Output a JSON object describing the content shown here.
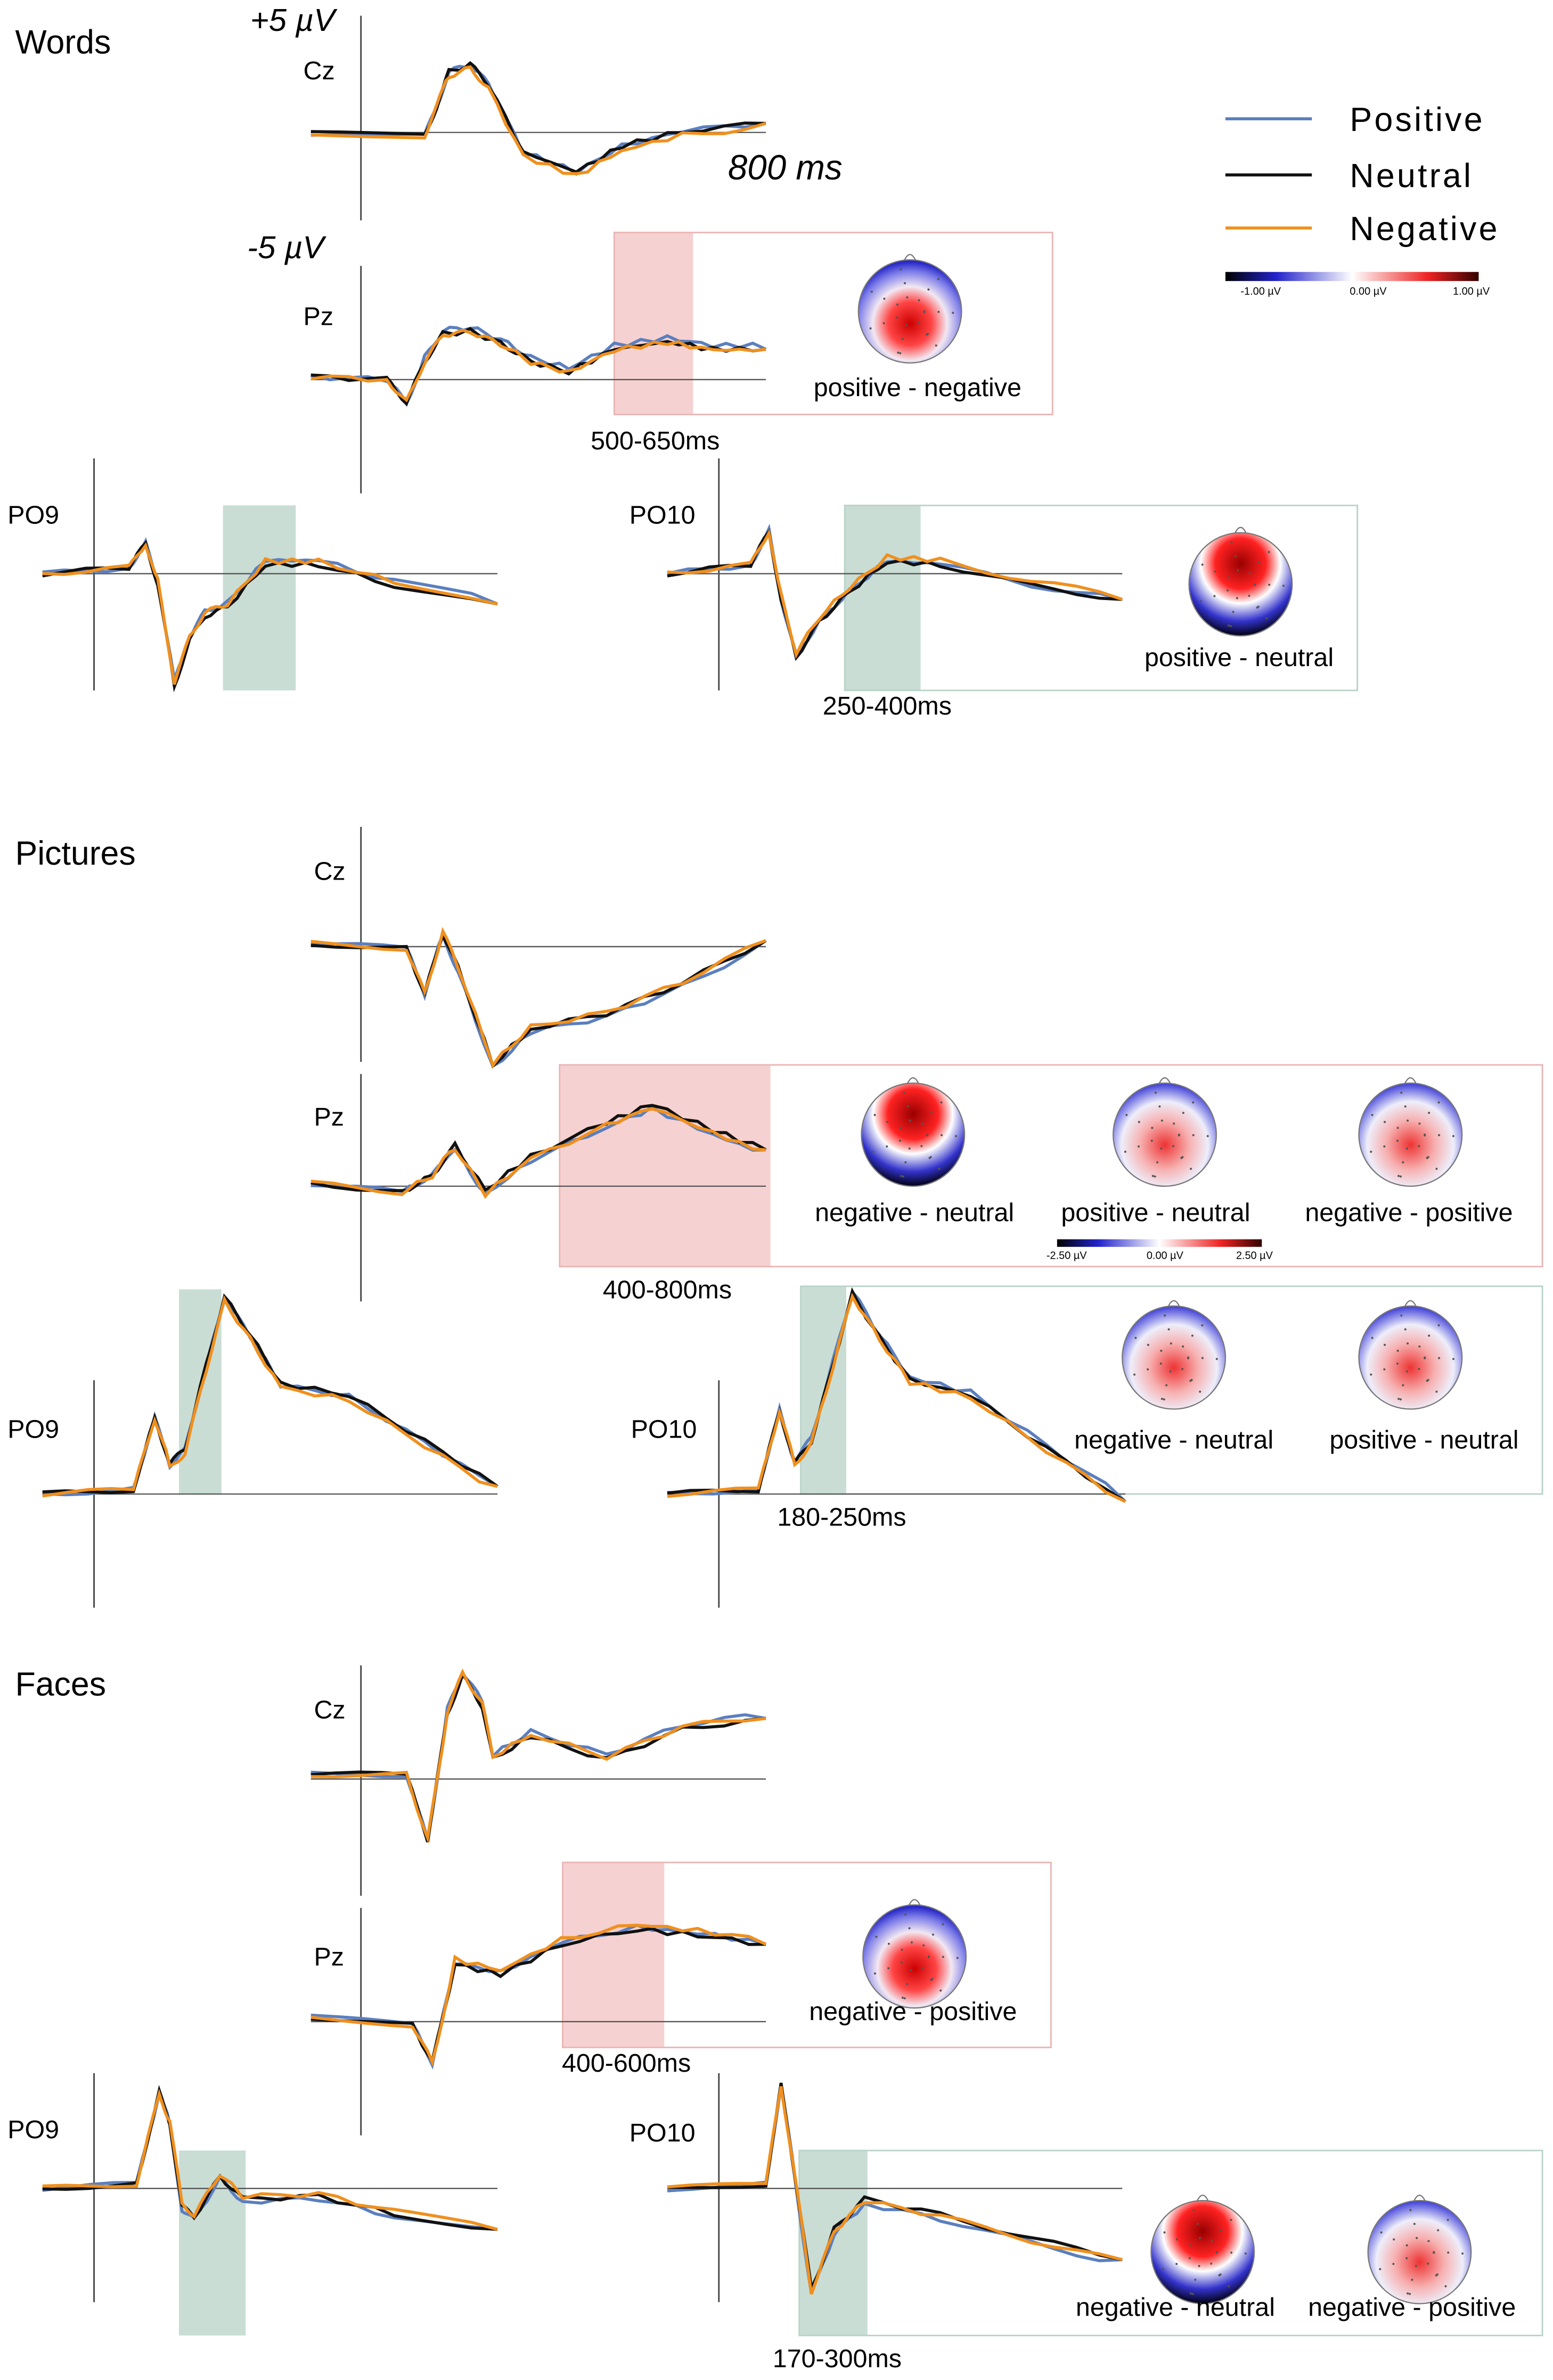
{
  "legend": [
    {
      "name": "Positive",
      "color": "#5b7fbf"
    },
    {
      "name": "Neutral",
      "color": "#111111"
    },
    {
      "name": "Negative",
      "color": "#f0901e"
    }
  ],
  "scale": {
    "top": "+5 µV",
    "bottom": "-5 µV",
    "time": "800 ms"
  },
  "panels": [
    {
      "title": "Words",
      "electrodes": [
        "Cz",
        "Pz",
        "PO9",
        "PO10"
      ],
      "windows": [
        "500-650ms",
        "250-400ms"
      ],
      "maps": [
        "positive - negative",
        "positive - neutral"
      ],
      "colorbar": [
        "-1.00 µV",
        "0.00 µV",
        "1.00 µV"
      ]
    },
    {
      "title": "Pictures",
      "electrodes": [
        "Cz",
        "Pz",
        "PO9",
        "PO10"
      ],
      "windows": [
        "400-800ms",
        "180-250ms"
      ],
      "maps": [
        "negative - neutral",
        "positive - neutral",
        "negative - positive",
        "negative - neutral",
        "positive - neutral"
      ],
      "colorbar": [
        "-2.50 µV",
        "0.00 µV",
        "2.50 µV"
      ]
    },
    {
      "title": "Faces",
      "electrodes": [
        "Cz",
        "Pz",
        "PO9",
        "PO10"
      ],
      "windows": [
        "400-600ms",
        "170-300ms"
      ],
      "maps": [
        "negative - positive",
        "negative - neutral",
        "negative - positive"
      ]
    }
  ]
}
